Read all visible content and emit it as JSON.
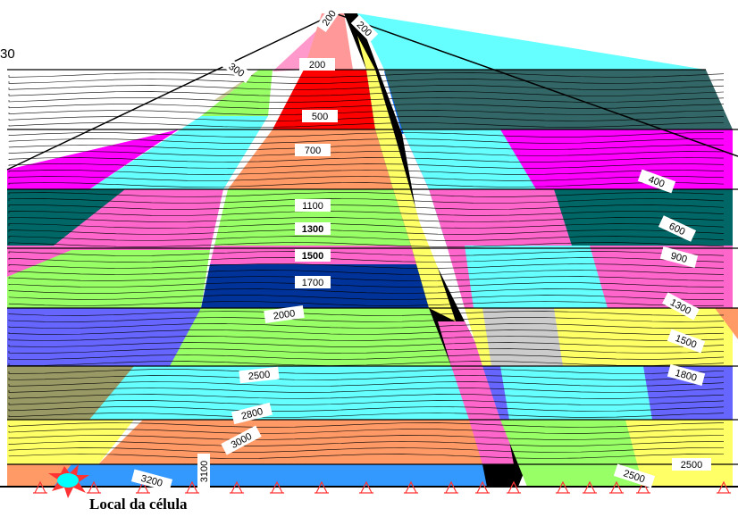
{
  "caption": "Local da célula",
  "edge_label": "30",
  "colors": {
    "dam_core": "#ff0000",
    "bg": "#ffffff",
    "outline": "#000000"
  },
  "contours_core": [
    {
      "text": "200"
    },
    {
      "text": "500"
    },
    {
      "text": "700"
    },
    {
      "text": "1100"
    },
    {
      "text": "1300",
      "bold": true
    },
    {
      "text": "1500",
      "bold": true
    },
    {
      "text": "1700"
    },
    {
      "text": "2000"
    },
    {
      "text": "2500"
    },
    {
      "text": "2800"
    },
    {
      "text": "3000"
    },
    {
      "text": "3200"
    },
    {
      "text": "3100"
    }
  ],
  "contours_top": [
    {
      "text": "200"
    },
    {
      "text": "200"
    },
    {
      "text": "300"
    }
  ],
  "contours_right": [
    {
      "text": "400"
    },
    {
      "text": "600"
    },
    {
      "text": "900"
    },
    {
      "text": "1300"
    },
    {
      "text": "1500"
    },
    {
      "text": "1800"
    },
    {
      "text": "2500"
    },
    {
      "text": "2500"
    }
  ]
}
